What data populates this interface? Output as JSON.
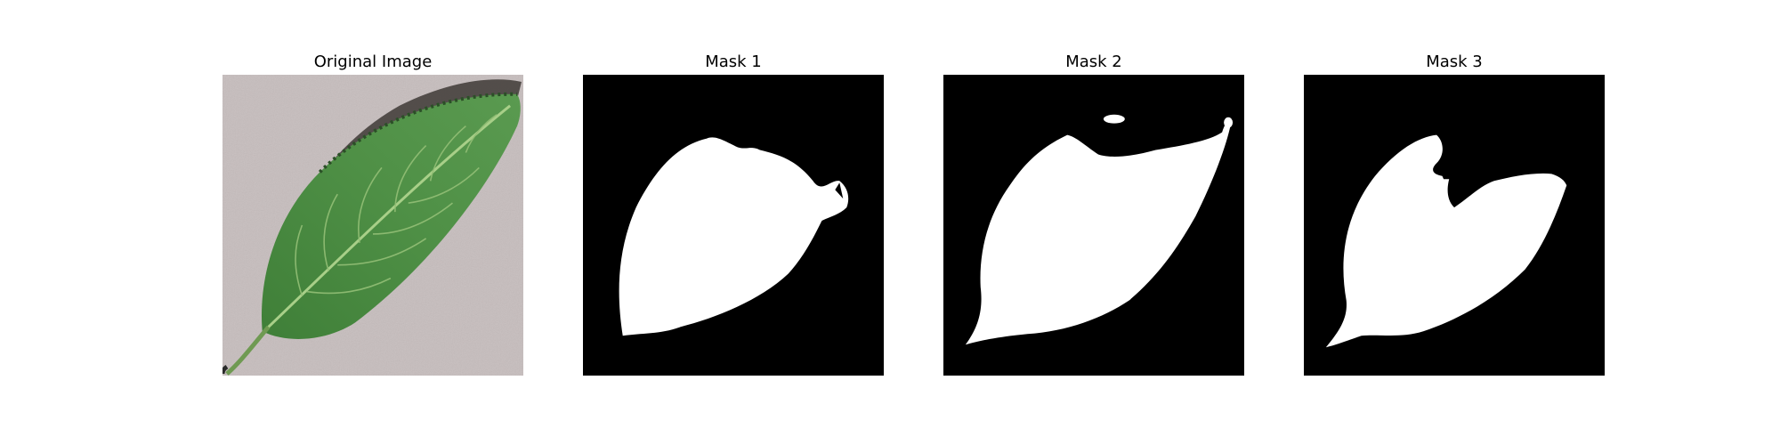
{
  "figure": {
    "panels": [
      {
        "title": "Original Image",
        "kind": "photo"
      },
      {
        "title": "Mask 1",
        "kind": "mask"
      },
      {
        "title": "Mask 2",
        "kind": "mask"
      },
      {
        "title": "Mask 3",
        "kind": "mask"
      }
    ]
  },
  "colors": {
    "background": "#c6bdbd",
    "leaf": "#4a8a3e",
    "leaf_dark": "#2f5f2a",
    "vein": "#a8cf88",
    "mask_bg": "#000000",
    "mask_fg": "#ffffff"
  }
}
